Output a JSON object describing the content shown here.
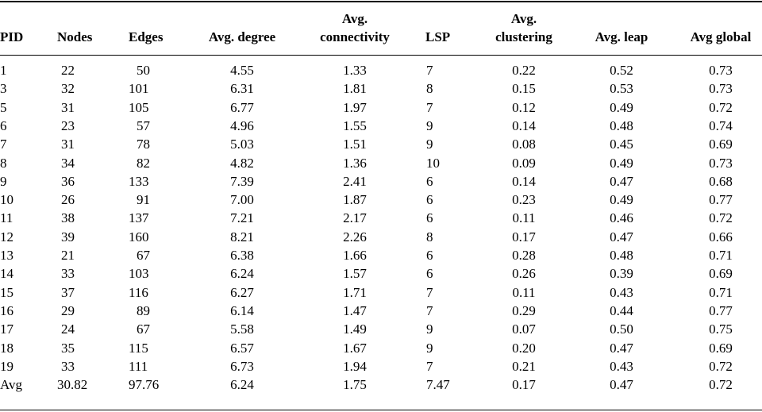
{
  "table": {
    "headers": {
      "pid": "PID",
      "nodes": "Nodes",
      "edges": "Edges",
      "avg_degree": "Avg. degree",
      "avg_connectivity_1": "Avg.",
      "avg_connectivity_2": "connectivity",
      "lsp": "LSP",
      "avg_clustering_1": "Avg.",
      "avg_clustering_2": "clustering",
      "avg_leap": "Avg. leap",
      "avg_global": "Avg global"
    },
    "rows": [
      [
        "1",
        "22",
        "50",
        "4.55",
        "1.33",
        "7",
        "0.22",
        "0.52",
        "0.73"
      ],
      [
        "3",
        "32",
        "101",
        "6.31",
        "1.81",
        "8",
        "0.15",
        "0.53",
        "0.73"
      ],
      [
        "5",
        "31",
        "105",
        "6.77",
        "1.97",
        "7",
        "0.12",
        "0.49",
        "0.72"
      ],
      [
        "6",
        "23",
        "57",
        "4.96",
        "1.55",
        "9",
        "0.14",
        "0.48",
        "0.74"
      ],
      [
        "7",
        "31",
        "78",
        "5.03",
        "1.51",
        "9",
        "0.08",
        "0.45",
        "0.69"
      ],
      [
        "8",
        "34",
        "82",
        "4.82",
        "1.36",
        "10",
        "0.09",
        "0.49",
        "0.73"
      ],
      [
        "9",
        "36",
        "133",
        "7.39",
        "2.41",
        "6",
        "0.14",
        "0.47",
        "0.68"
      ],
      [
        "10",
        "26",
        "91",
        "7.00",
        "1.87",
        "6",
        "0.23",
        "0.49",
        "0.77"
      ],
      [
        "11",
        "38",
        "137",
        "7.21",
        "2.17",
        "6",
        "0.11",
        "0.46",
        "0.72"
      ],
      [
        "12",
        "39",
        "160",
        "8.21",
        "2.26",
        "8",
        "0.17",
        "0.47",
        "0.66"
      ],
      [
        "13",
        "21",
        "67",
        "6.38",
        "1.66",
        "6",
        "0.28",
        "0.48",
        "0.71"
      ],
      [
        "14",
        "33",
        "103",
        "6.24",
        "1.57",
        "6",
        "0.26",
        "0.39",
        "0.69"
      ],
      [
        "15",
        "37",
        "116",
        "6.27",
        "1.71",
        "7",
        "0.11",
        "0.43",
        "0.71"
      ],
      [
        "16",
        "29",
        "89",
        "6.14",
        "1.47",
        "7",
        "0.29",
        "0.44",
        "0.77"
      ],
      [
        "17",
        "24",
        "67",
        "5.58",
        "1.49",
        "9",
        "0.07",
        "0.50",
        "0.75"
      ],
      [
        "18",
        "35",
        "115",
        "6.57",
        "1.67",
        "9",
        "0.20",
        "0.47",
        "0.69"
      ],
      [
        "19",
        "33",
        "111",
        "6.73",
        "1.94",
        "7",
        "0.21",
        "0.43",
        "0.72"
      ],
      [
        "Avg",
        "30.82",
        "97.76",
        "6.24",
        "1.75",
        "7.47",
        "0.17",
        "0.47",
        "0.72"
      ]
    ]
  }
}
